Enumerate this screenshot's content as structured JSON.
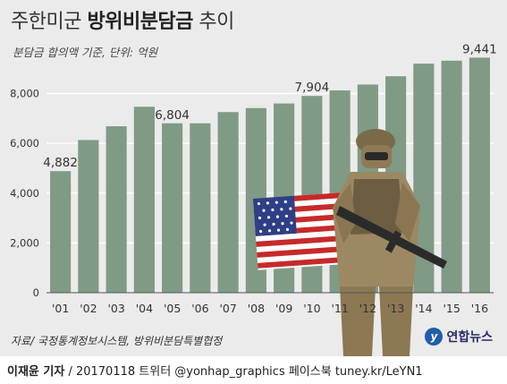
{
  "title": {
    "prefix": "주한미군 ",
    "bold": "방위비분담금",
    "suffix": " 추이"
  },
  "subtitle": "분담금 합의액 기준, 단위: 억원",
  "source": "자료/ 국정통계정보시스템, 방위비분담특별협정",
  "logo": {
    "mark": "y",
    "text": "연합뉴스"
  },
  "credit": {
    "name": "이재윤 기자",
    "text": " / 20170118  트위터 @yonhap_graphics  페이스북 tuney.kr/LeYN1"
  },
  "colors": {
    "bar": "#7f9a85",
    "panel": "#ebebeb",
    "grid": "#ffffff"
  },
  "illustration": {
    "name": "soldier-with-us-flag"
  },
  "chart_data": {
    "type": "bar",
    "categories": [
      "'01",
      "'02",
      "'03",
      "'04",
      "'05",
      "'06",
      "'07",
      "'08",
      "'09",
      "'10",
      "'11",
      "'12",
      "'13",
      "'14",
      "'15",
      "'16"
    ],
    "values": [
      4882,
      6132,
      6686,
      7469,
      6804,
      6804,
      7255,
      7415,
      7600,
      7904,
      8125,
      8361,
      8695,
      9200,
      9320,
      9441
    ],
    "value_labels": {
      "0": "4,882",
      "4": "6,804",
      "9": "7,904",
      "15": "9,441"
    },
    "y_ticks": [
      "0",
      "2,000",
      "4,000",
      "6,000",
      "8,000"
    ],
    "y_tick_values": [
      0,
      2000,
      4000,
      6000,
      8000
    ],
    "ylim": [
      0,
      9600
    ],
    "grid": true
  }
}
